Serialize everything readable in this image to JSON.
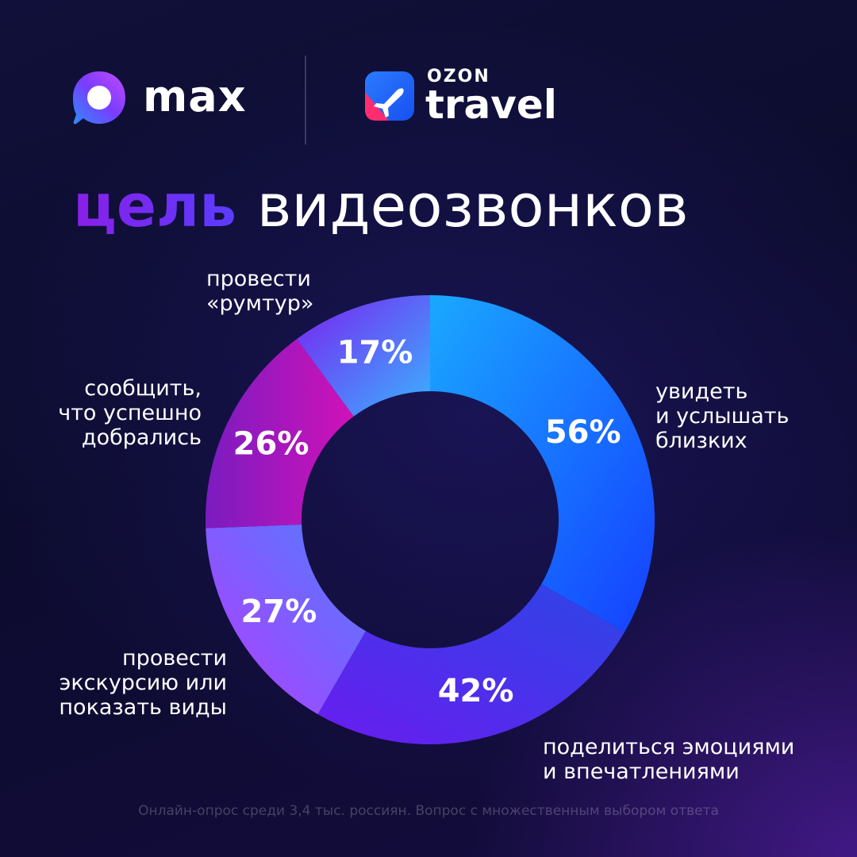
{
  "header": {
    "max_brand": "max",
    "ozon_small": "OZON",
    "ozon_travel": "travel",
    "max_icon": "max-chat-bubble-icon",
    "ozon_icon": "airplane-icon"
  },
  "title": {
    "accent": "цель",
    "rest": "видеозвонков"
  },
  "chart_data": {
    "type": "pie",
    "variant": "donut",
    "title": "цель видеозвонков",
    "unit": "%",
    "categories": [
      "увидеть\nи услышать\nблизких",
      "поделиться эмоциями\nи впечатлениями",
      "провести\nэкскурсию или\nпоказать виды",
      "сообщить,\nчто успешно\nдобрались",
      "провести\n«румтур»"
    ],
    "values": [
      56,
      42,
      27,
      26,
      17
    ],
    "value_labels": [
      "56%",
      "42%",
      "27%",
      "26%",
      "17%"
    ],
    "colors": [
      [
        "#1aa8ff",
        "#1540ff"
      ],
      [
        "#2b46e6",
        "#6a1cf0"
      ],
      [
        "#b53cff",
        "#4f7cff"
      ],
      [
        "#7a1cc0",
        "#d012b8"
      ],
      [
        "#7a20f0",
        "#3ab4ff"
      ]
    ]
  },
  "footnote": "Онлайн-опрос среди 3,4 тыс. россиян. Вопрос с множественным выбором ответа"
}
